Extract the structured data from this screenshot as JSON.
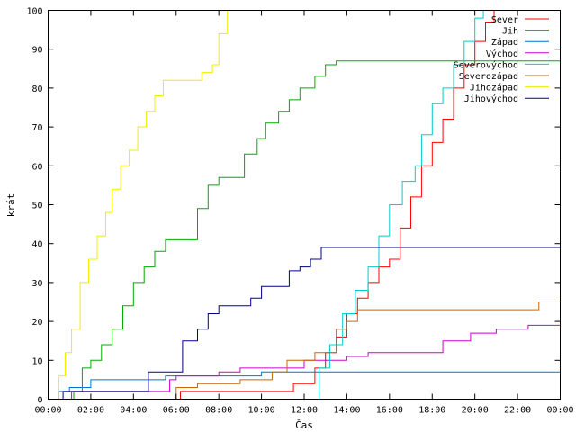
{
  "chart_data": {
    "type": "line",
    "xlabel": "Čas",
    "ylabel": "krát",
    "xlim": [
      0,
      24
    ],
    "ylim": [
      0,
      100
    ],
    "x_ticks": [
      {
        "v": 0,
        "label": "00:00"
      },
      {
        "v": 2,
        "label": "02:00"
      },
      {
        "v": 4,
        "label": "04:00"
      },
      {
        "v": 6,
        "label": "06:00"
      },
      {
        "v": 8,
        "label": "08:00"
      },
      {
        "v": 10,
        "label": "10:00"
      },
      {
        "v": 12,
        "label": "12:00"
      },
      {
        "v": 14,
        "label": "14:00"
      },
      {
        "v": 16,
        "label": "16:00"
      },
      {
        "v": 18,
        "label": "18:00"
      },
      {
        "v": 20,
        "label": "20:00"
      },
      {
        "v": 22,
        "label": "22:00"
      },
      {
        "v": 24,
        "label": "00:00"
      }
    ],
    "y_ticks": [
      0,
      10,
      20,
      30,
      40,
      50,
      60,
      70,
      80,
      90,
      100
    ],
    "legend_position": "top-right",
    "grid": false,
    "series": [
      {
        "name": "Sever",
        "color": "#ff0000",
        "points": [
          [
            0,
            0
          ],
          [
            5.9,
            0
          ],
          [
            6.2,
            2
          ],
          [
            9.5,
            2
          ],
          [
            11.5,
            4
          ],
          [
            12.5,
            8
          ],
          [
            13.0,
            12
          ],
          [
            13.5,
            16
          ],
          [
            14.0,
            22
          ],
          [
            14.5,
            26
          ],
          [
            15.0,
            30
          ],
          [
            15.5,
            34
          ],
          [
            16.0,
            36
          ],
          [
            16.5,
            44
          ],
          [
            17.0,
            52
          ],
          [
            17.5,
            60
          ],
          [
            18.0,
            66
          ],
          [
            18.5,
            72
          ],
          [
            19.0,
            80
          ],
          [
            19.5,
            86
          ],
          [
            20.0,
            92
          ],
          [
            20.5,
            97
          ],
          [
            20.9,
            100
          ]
        ]
      },
      {
        "name": "Jih",
        "color": "#00aa00",
        "points": [
          [
            0,
            0
          ],
          [
            0.8,
            0
          ],
          [
            1.2,
            2
          ],
          [
            1.6,
            8
          ],
          [
            2.0,
            10
          ],
          [
            2.5,
            14
          ],
          [
            3.0,
            18
          ],
          [
            3.5,
            24
          ],
          [
            4.0,
            30
          ],
          [
            4.5,
            34
          ],
          [
            5.0,
            38
          ],
          [
            5.5,
            41
          ],
          [
            6.5,
            41
          ],
          [
            7.0,
            49
          ],
          [
            7.5,
            55
          ],
          [
            8.0,
            57
          ],
          [
            8.7,
            57
          ],
          [
            9.2,
            63
          ],
          [
            9.8,
            67
          ],
          [
            10.2,
            71
          ],
          [
            10.8,
            74
          ],
          [
            11.3,
            77
          ],
          [
            11.8,
            80
          ],
          [
            12.5,
            83
          ],
          [
            13.0,
            86
          ],
          [
            13.5,
            87
          ],
          [
            24,
            87
          ]
        ]
      },
      {
        "name": "Západ",
        "color": "#0077cc",
        "points": [
          [
            0,
            0
          ],
          [
            0.4,
            0
          ],
          [
            0.5,
            2
          ],
          [
            1.0,
            3
          ],
          [
            2.0,
            5
          ],
          [
            5.0,
            5
          ],
          [
            5.5,
            6
          ],
          [
            8.0,
            6
          ],
          [
            10.0,
            7
          ],
          [
            24,
            7
          ]
        ]
      },
      {
        "name": "Východ",
        "color": "#cc00cc",
        "points": [
          [
            0,
            0
          ],
          [
            1.0,
            0
          ],
          [
            1.1,
            2
          ],
          [
            5.5,
            2
          ],
          [
            5.7,
            5
          ],
          [
            6.0,
            6
          ],
          [
            8.0,
            7
          ],
          [
            9.0,
            8
          ],
          [
            12.0,
            10
          ],
          [
            14.0,
            11
          ],
          [
            15.0,
            12
          ],
          [
            18.5,
            15
          ],
          [
            19.8,
            17
          ],
          [
            21.0,
            18
          ],
          [
            22.5,
            19
          ],
          [
            24,
            19
          ]
        ]
      },
      {
        "name": "Severovýchod",
        "color": "#00cccc",
        "points": [
          [
            0,
            0
          ],
          [
            12.2,
            0
          ],
          [
            12.7,
            8
          ],
          [
            13.2,
            14
          ],
          [
            13.8,
            22
          ],
          [
            14.4,
            28
          ],
          [
            15.0,
            34
          ],
          [
            15.5,
            42
          ],
          [
            16.0,
            50
          ],
          [
            16.6,
            56
          ],
          [
            17.2,
            60
          ],
          [
            17.5,
            68
          ],
          [
            18.0,
            76
          ],
          [
            18.5,
            80
          ],
          [
            19.0,
            86
          ],
          [
            19.5,
            92
          ],
          [
            20.0,
            98
          ],
          [
            20.4,
            100
          ]
        ]
      },
      {
        "name": "Severozápad",
        "color": "#cc6600",
        "points": [
          [
            0,
            0
          ],
          [
            5.7,
            0
          ],
          [
            6.0,
            3
          ],
          [
            7.0,
            4
          ],
          [
            9.0,
            5
          ],
          [
            10.5,
            7
          ],
          [
            11.2,
            10
          ],
          [
            12.5,
            12
          ],
          [
            13.5,
            18
          ],
          [
            14.0,
            20
          ],
          [
            14.5,
            23
          ],
          [
            22.5,
            23
          ],
          [
            23.0,
            25
          ],
          [
            24,
            25
          ]
        ]
      },
      {
        "name": "Jihozápad",
        "color": "#eeee00",
        "points": [
          [
            0,
            0
          ],
          [
            0.2,
            0
          ],
          [
            0.5,
            6
          ],
          [
            0.8,
            12
          ],
          [
            1.1,
            18
          ],
          [
            1.5,
            30
          ],
          [
            1.9,
            36
          ],
          [
            2.3,
            42
          ],
          [
            2.7,
            48
          ],
          [
            3.0,
            54
          ],
          [
            3.4,
            60
          ],
          [
            3.8,
            64
          ],
          [
            4.2,
            70
          ],
          [
            4.6,
            74
          ],
          [
            5.0,
            78
          ],
          [
            5.4,
            82
          ],
          [
            6.5,
            82
          ],
          [
            7.2,
            84
          ],
          [
            7.7,
            86
          ],
          [
            8.0,
            94
          ],
          [
            8.4,
            100
          ]
        ]
      },
      {
        "name": "Jihovýchod",
        "color": "#000088",
        "points": [
          [
            0,
            0
          ],
          [
            0.6,
            0
          ],
          [
            0.7,
            2
          ],
          [
            4.5,
            2
          ],
          [
            4.7,
            7
          ],
          [
            6.0,
            7
          ],
          [
            6.3,
            15
          ],
          [
            7.0,
            18
          ],
          [
            7.5,
            22
          ],
          [
            8.0,
            24
          ],
          [
            9.0,
            24
          ],
          [
            9.5,
            26
          ],
          [
            10.0,
            29
          ],
          [
            11.0,
            29
          ],
          [
            11.3,
            33
          ],
          [
            11.8,
            34
          ],
          [
            12.3,
            36
          ],
          [
            12.8,
            39
          ],
          [
            24,
            39
          ]
        ]
      }
    ]
  }
}
